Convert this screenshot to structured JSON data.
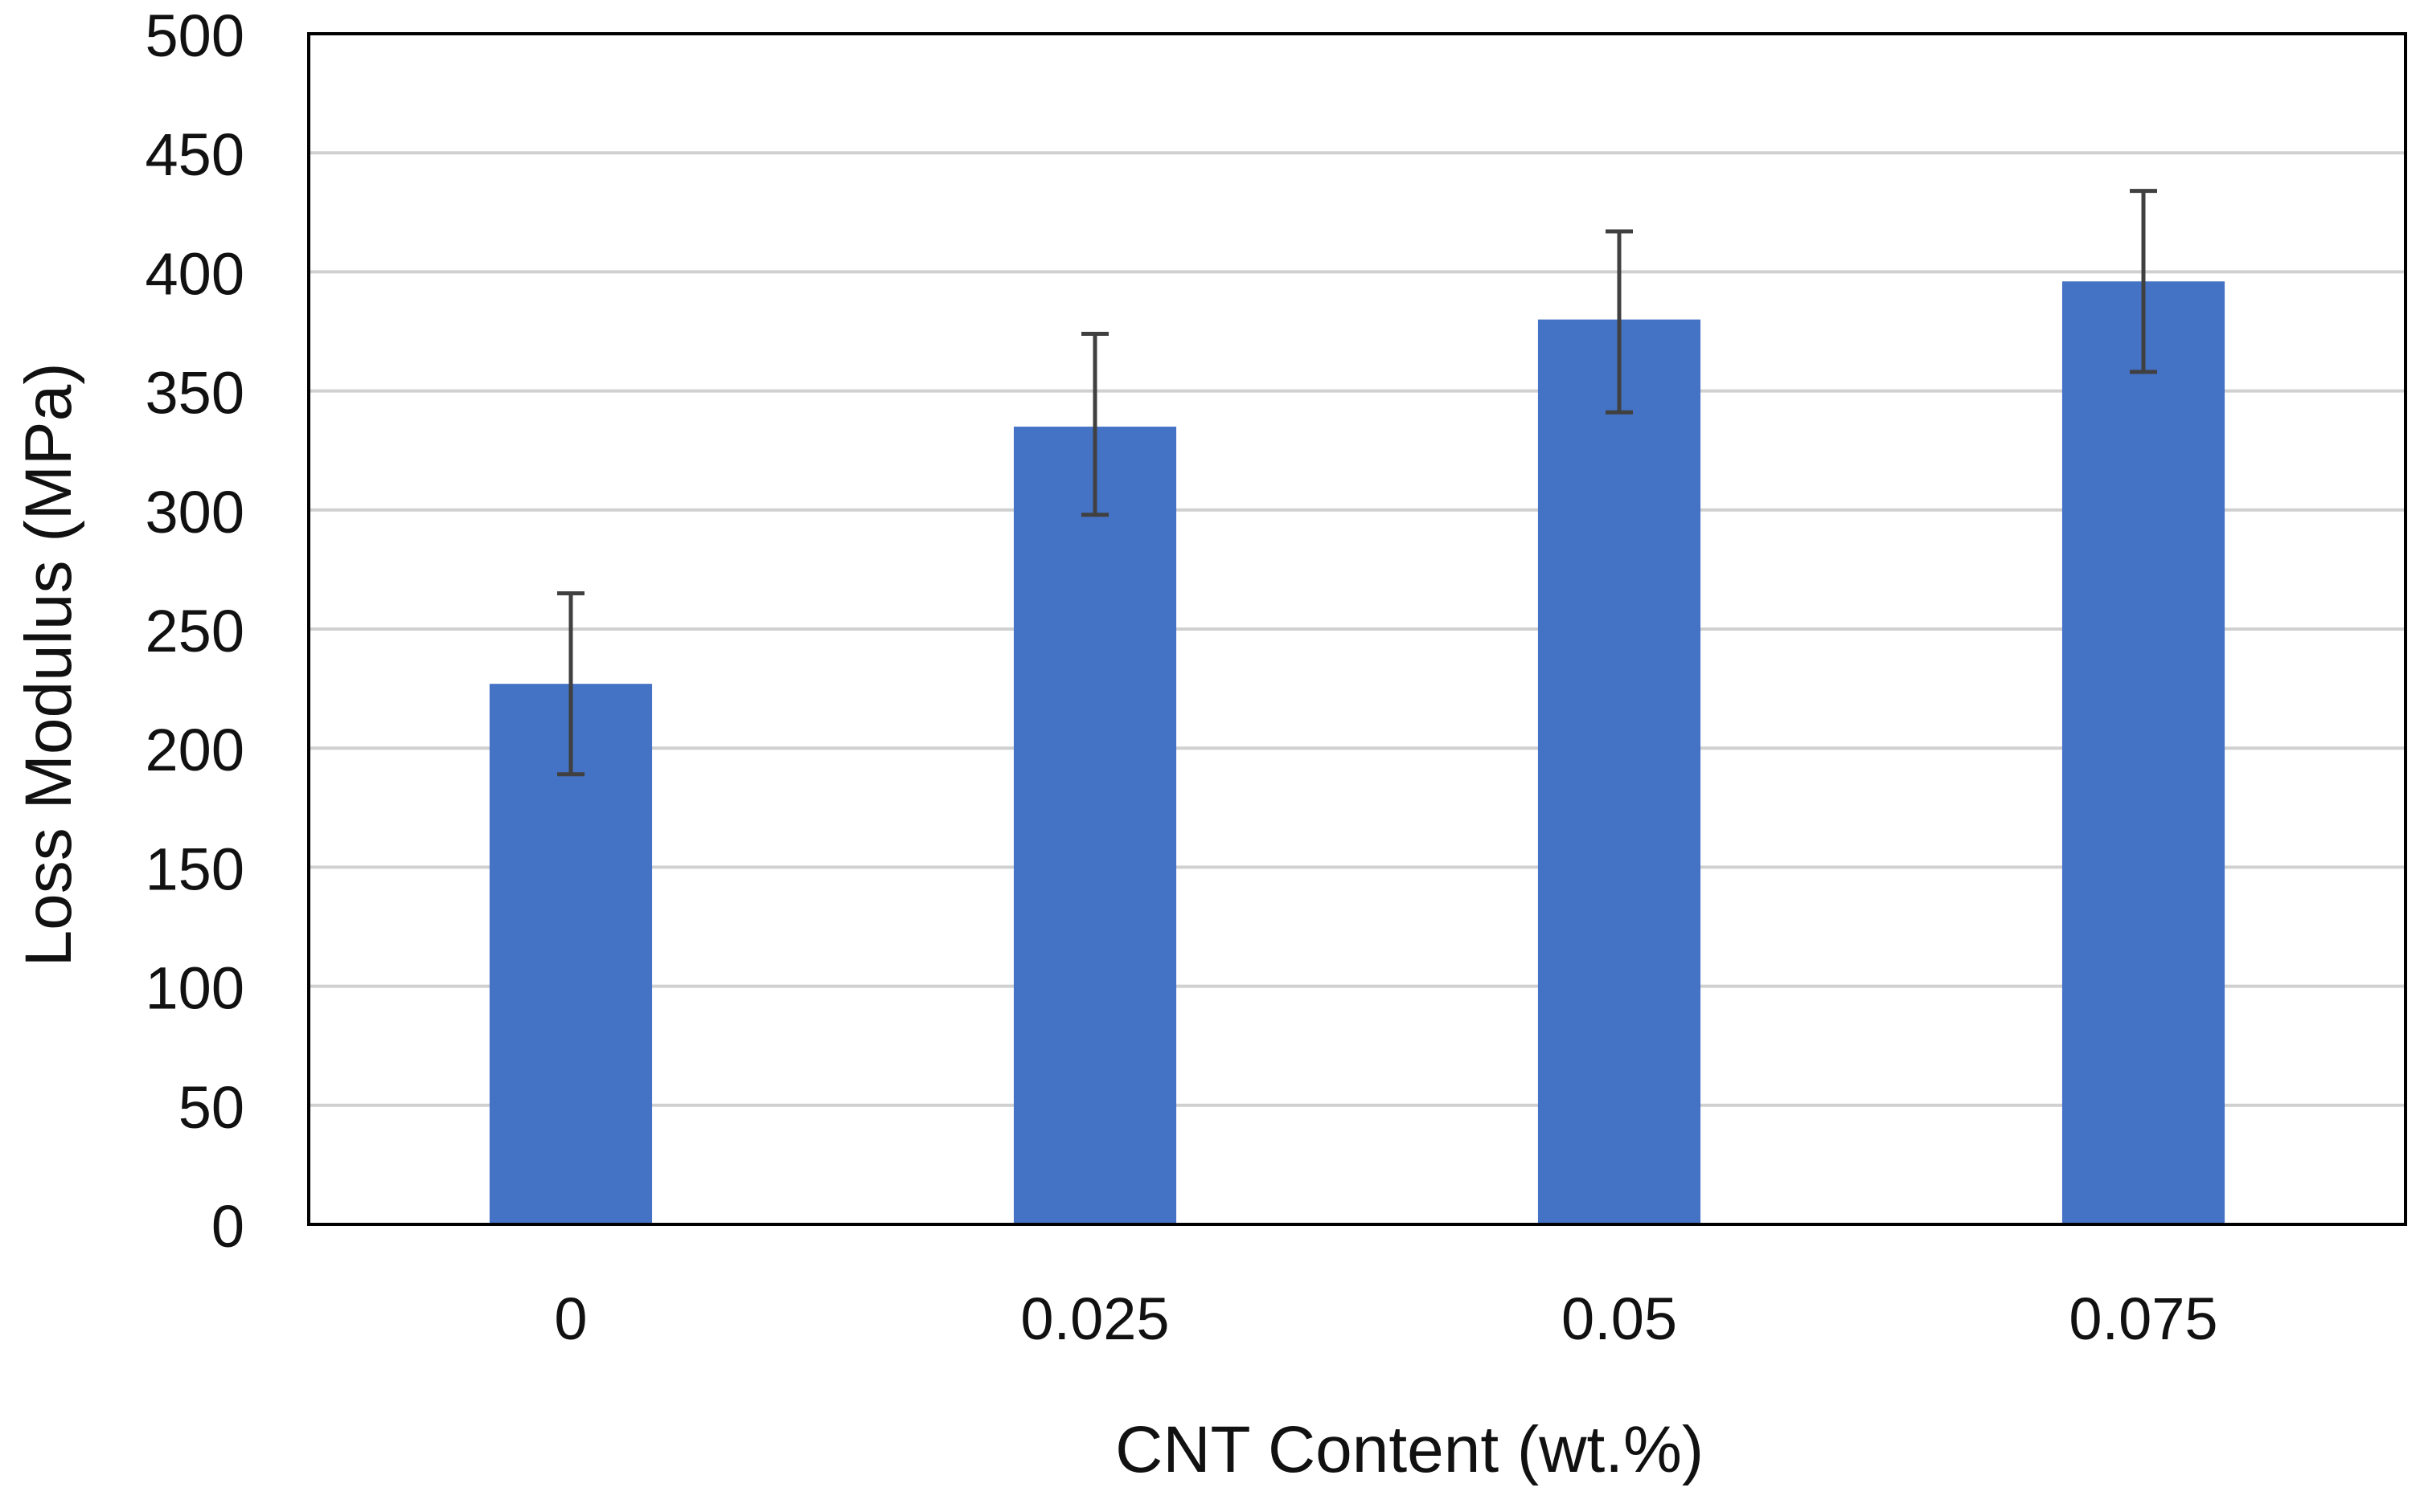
{
  "chart_data": {
    "type": "bar",
    "title": "",
    "xlabel": "CNT Content (wt.%)",
    "ylabel": "Loss Modulus (MPa)",
    "categories": [
      "0",
      "0.025",
      "0.05",
      "0.075"
    ],
    "values": [
      227,
      335,
      380,
      396
    ],
    "error_bars": {
      "upper": [
        265,
        374,
        417,
        434
      ],
      "lower": [
        189,
        298,
        341,
        358
      ]
    },
    "ylim": [
      0,
      500
    ],
    "yticks": [
      "0",
      "50",
      "100",
      "150",
      "200",
      "250",
      "300",
      "350",
      "400",
      "450",
      "500"
    ],
    "grid": "horizontal",
    "legend": "none",
    "colors": {
      "bar": "#4472C4",
      "error_bar": "#404040",
      "grid": "#d0d0d0",
      "axis": "#000000"
    }
  }
}
